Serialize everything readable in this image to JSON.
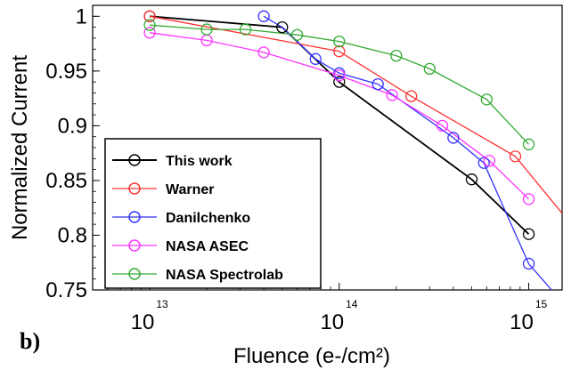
{
  "panel_label": "b)",
  "chart_data": {
    "type": "line",
    "xlabel": "Fluence (e-/cm²)",
    "ylabel": "Normalized Current",
    "xscale": "log",
    "xlim": [
      5000000000000.0,
      1500000000000000.0
    ],
    "ylim": [
      0.75,
      1.01
    ],
    "x_ticks": [
      {
        "value": 10000000000000.0,
        "base": "10",
        "exp": "13"
      },
      {
        "value": 100000000000000.0,
        "base": "10",
        "exp": "14"
      },
      {
        "value": 1000000000000000.0,
        "base": "10",
        "exp": "15"
      }
    ],
    "y_ticks": [
      {
        "value": 0.75,
        "label": "0.75"
      },
      {
        "value": 0.8,
        "label": "0.8"
      },
      {
        "value": 0.85,
        "label": "0.85"
      },
      {
        "value": 0.9,
        "label": "0.9"
      },
      {
        "value": 0.95,
        "label": "0.95"
      },
      {
        "value": 1.0,
        "label": "1"
      }
    ],
    "legend_position": "bottom-left",
    "series": [
      {
        "name": "This work",
        "color": "#000000",
        "points": [
          [
            10000000000000.0,
            1.0
          ],
          [
            50000000000000.0,
            0.99
          ],
          [
            100000000000000.0,
            0.94
          ],
          [
            500000000000000.0,
            0.851
          ],
          [
            1000000000000000.0,
            0.801
          ]
        ],
        "markers": [
          [
            10000000000000.0,
            1.0
          ],
          [
            50000000000000.0,
            0.99
          ],
          [
            100000000000000.0,
            0.94
          ],
          [
            500000000000000.0,
            0.851
          ],
          [
            1000000000000000.0,
            0.801
          ]
        ]
      },
      {
        "name": "Warner",
        "color": "#ff3333",
        "points": [
          [
            10000000000000.0,
            1.0
          ],
          [
            100000000000000.0,
            0.968
          ],
          [
            240000000000000.0,
            0.927
          ],
          [
            850000000000000.0,
            0.872
          ],
          [
            1500000000000000.0,
            0.82
          ]
        ],
        "markers": [
          [
            10000000000000.0,
            1.0
          ],
          [
            100000000000000.0,
            0.968
          ],
          [
            240000000000000.0,
            0.927
          ],
          [
            850000000000000.0,
            0.872
          ]
        ]
      },
      {
        "name": "Danilchenko",
        "color": "#3333ff",
        "points": [
          [
            40000000000000.0,
            1.0
          ],
          [
            50000000000000.0,
            0.99
          ],
          [
            75000000000000.0,
            0.961
          ],
          [
            100000000000000.0,
            0.948
          ],
          [
            160000000000000.0,
            0.938
          ],
          [
            400000000000000.0,
            0.889
          ],
          [
            580000000000000.0,
            0.866
          ],
          [
            1000000000000000.0,
            0.774
          ],
          [
            1400000000000000.0,
            0.745
          ]
        ],
        "markers": [
          [
            40000000000000.0,
            1.0
          ],
          [
            75000000000000.0,
            0.961
          ],
          [
            100000000000000.0,
            0.948
          ],
          [
            160000000000000.0,
            0.938
          ],
          [
            400000000000000.0,
            0.889
          ],
          [
            580000000000000.0,
            0.866
          ],
          [
            1000000000000000.0,
            0.774
          ]
        ]
      },
      {
        "name": "NASA ASEC",
        "color": "#ff33ff",
        "points": [
          [
            10000000000000.0,
            0.985
          ],
          [
            20000000000000.0,
            0.978
          ],
          [
            40000000000000.0,
            0.967
          ],
          [
            100000000000000.0,
            0.946
          ],
          [
            190000000000000.0,
            0.928
          ],
          [
            350000000000000.0,
            0.9
          ],
          [
            620000000000000.0,
            0.868
          ],
          [
            1000000000000000.0,
            0.833
          ]
        ],
        "markers": [
          [
            10000000000000.0,
            0.985
          ],
          [
            20000000000000.0,
            0.978
          ],
          [
            40000000000000.0,
            0.967
          ],
          [
            100000000000000.0,
            0.946
          ],
          [
            190000000000000.0,
            0.928
          ],
          [
            350000000000000.0,
            0.9
          ],
          [
            620000000000000.0,
            0.868
          ],
          [
            1000000000000000.0,
            0.833
          ]
        ]
      },
      {
        "name": "NASA Spectrolab",
        "color": "#33aa33",
        "points": [
          [
            10000000000000.0,
            0.992
          ],
          [
            20000000000000.0,
            0.988
          ],
          [
            32000000000000.0,
            0.988
          ],
          [
            60000000000000.0,
            0.983
          ],
          [
            100000000000000.0,
            0.977
          ],
          [
            200000000000000.0,
            0.964
          ],
          [
            300000000000000.0,
            0.952
          ],
          [
            600000000000000.0,
            0.924
          ],
          [
            1000000000000000.0,
            0.883
          ]
        ],
        "markers": [
          [
            10000000000000.0,
            0.992
          ],
          [
            20000000000000.0,
            0.988
          ],
          [
            32000000000000.0,
            0.988
          ],
          [
            60000000000000.0,
            0.983
          ],
          [
            100000000000000.0,
            0.977
          ],
          [
            200000000000000.0,
            0.964
          ],
          [
            300000000000000.0,
            0.952
          ],
          [
            600000000000000.0,
            0.924
          ],
          [
            1000000000000000.0,
            0.883
          ]
        ]
      }
    ]
  }
}
